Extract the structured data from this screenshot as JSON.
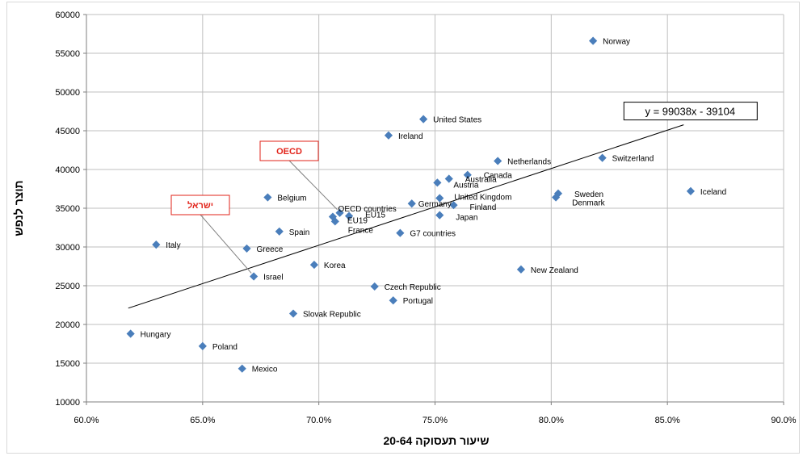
{
  "chart_data": {
    "type": "scatter",
    "xlabel": "שיעור תעסוקה 20-64",
    "ylabel": "תוצר לנפש",
    "xlim": [
      0.6,
      0.9
    ],
    "ylim": [
      10000,
      60000
    ],
    "x_ticks": [
      "60.0%",
      "65.0%",
      "70.0%",
      "75.0%",
      "80.0%",
      "85.0%",
      "90.0%"
    ],
    "y_ticks": [
      "10000",
      "15000",
      "20000",
      "25000",
      "30000",
      "35000",
      "40000",
      "45000",
      "50000",
      "55000",
      "60000"
    ],
    "grid": true,
    "marker_color": "#4a7ebb",
    "points": [
      {
        "label": "Norway",
        "x": 0.818,
        "y": 56600
      },
      {
        "label": "United States",
        "x": 0.745,
        "y": 46500
      },
      {
        "label": "Ireland",
        "x": 0.73,
        "y": 44400
      },
      {
        "label": "Switzerland",
        "x": 0.822,
        "y": 41500
      },
      {
        "label": "Netherlands",
        "x": 0.777,
        "y": 41100
      },
      {
        "label": "Canada",
        "x": 0.764,
        "y": 39300
      },
      {
        "label": "Australia",
        "x": 0.756,
        "y": 38800
      },
      {
        "label": "Austria",
        "x": 0.751,
        "y": 38300
      },
      {
        "label": "Iceland",
        "x": 0.86,
        "y": 37200
      },
      {
        "label": "Sweden",
        "x": 0.803,
        "y": 36900
      },
      {
        "label": "Denmark",
        "x": 0.802,
        "y": 36400
      },
      {
        "label": "Belgium",
        "x": 0.678,
        "y": 36400
      },
      {
        "label": "United Kingdom",
        "x": 0.752,
        "y": 36300
      },
      {
        "label": "Germany",
        "x": 0.74,
        "y": 35600
      },
      {
        "label": "Finland",
        "x": 0.758,
        "y": 35400
      },
      {
        "label": "OECD countries",
        "x": 0.709,
        "y": 34400
      },
      {
        "label": "EU15",
        "x": 0.713,
        "y": 34000
      },
      {
        "label": "EU19",
        "x": 0.706,
        "y": 33900
      },
      {
        "label": "France",
        "x": 0.707,
        "y": 33300
      },
      {
        "label": "Japan",
        "x": 0.752,
        "y": 34100
      },
      {
        "label": "Spain",
        "x": 0.683,
        "y": 32000
      },
      {
        "label": "G7 countries",
        "x": 0.735,
        "y": 31800
      },
      {
        "label": "Italy",
        "x": 0.63,
        "y": 30300
      },
      {
        "label": "Greece",
        "x": 0.669,
        "y": 29800
      },
      {
        "label": "Korea",
        "x": 0.698,
        "y": 27700
      },
      {
        "label": "New Zealand",
        "x": 0.787,
        "y": 27100
      },
      {
        "label": "Israel",
        "x": 0.672,
        "y": 26200
      },
      {
        "label": "Czech Republic",
        "x": 0.724,
        "y": 24900
      },
      {
        "label": "Portugal",
        "x": 0.732,
        "y": 23100
      },
      {
        "label": "Slovak Republic",
        "x": 0.689,
        "y": 21400
      },
      {
        "label": "Hungary",
        "x": 0.619,
        "y": 18800
      },
      {
        "label": "Poland",
        "x": 0.65,
        "y": 17200
      },
      {
        "label": "Mexico",
        "x": 0.667,
        "y": 14300
      }
    ],
    "trendline": {
      "equation": "y = 99038x - 39104",
      "slope": 99038,
      "intercept": -39104,
      "x_range": [
        0.618,
        0.857
      ]
    },
    "callouts": [
      {
        "text": "OECD",
        "target": "OECD countries"
      },
      {
        "text": "ישראל",
        "target": "Israel"
      }
    ]
  }
}
